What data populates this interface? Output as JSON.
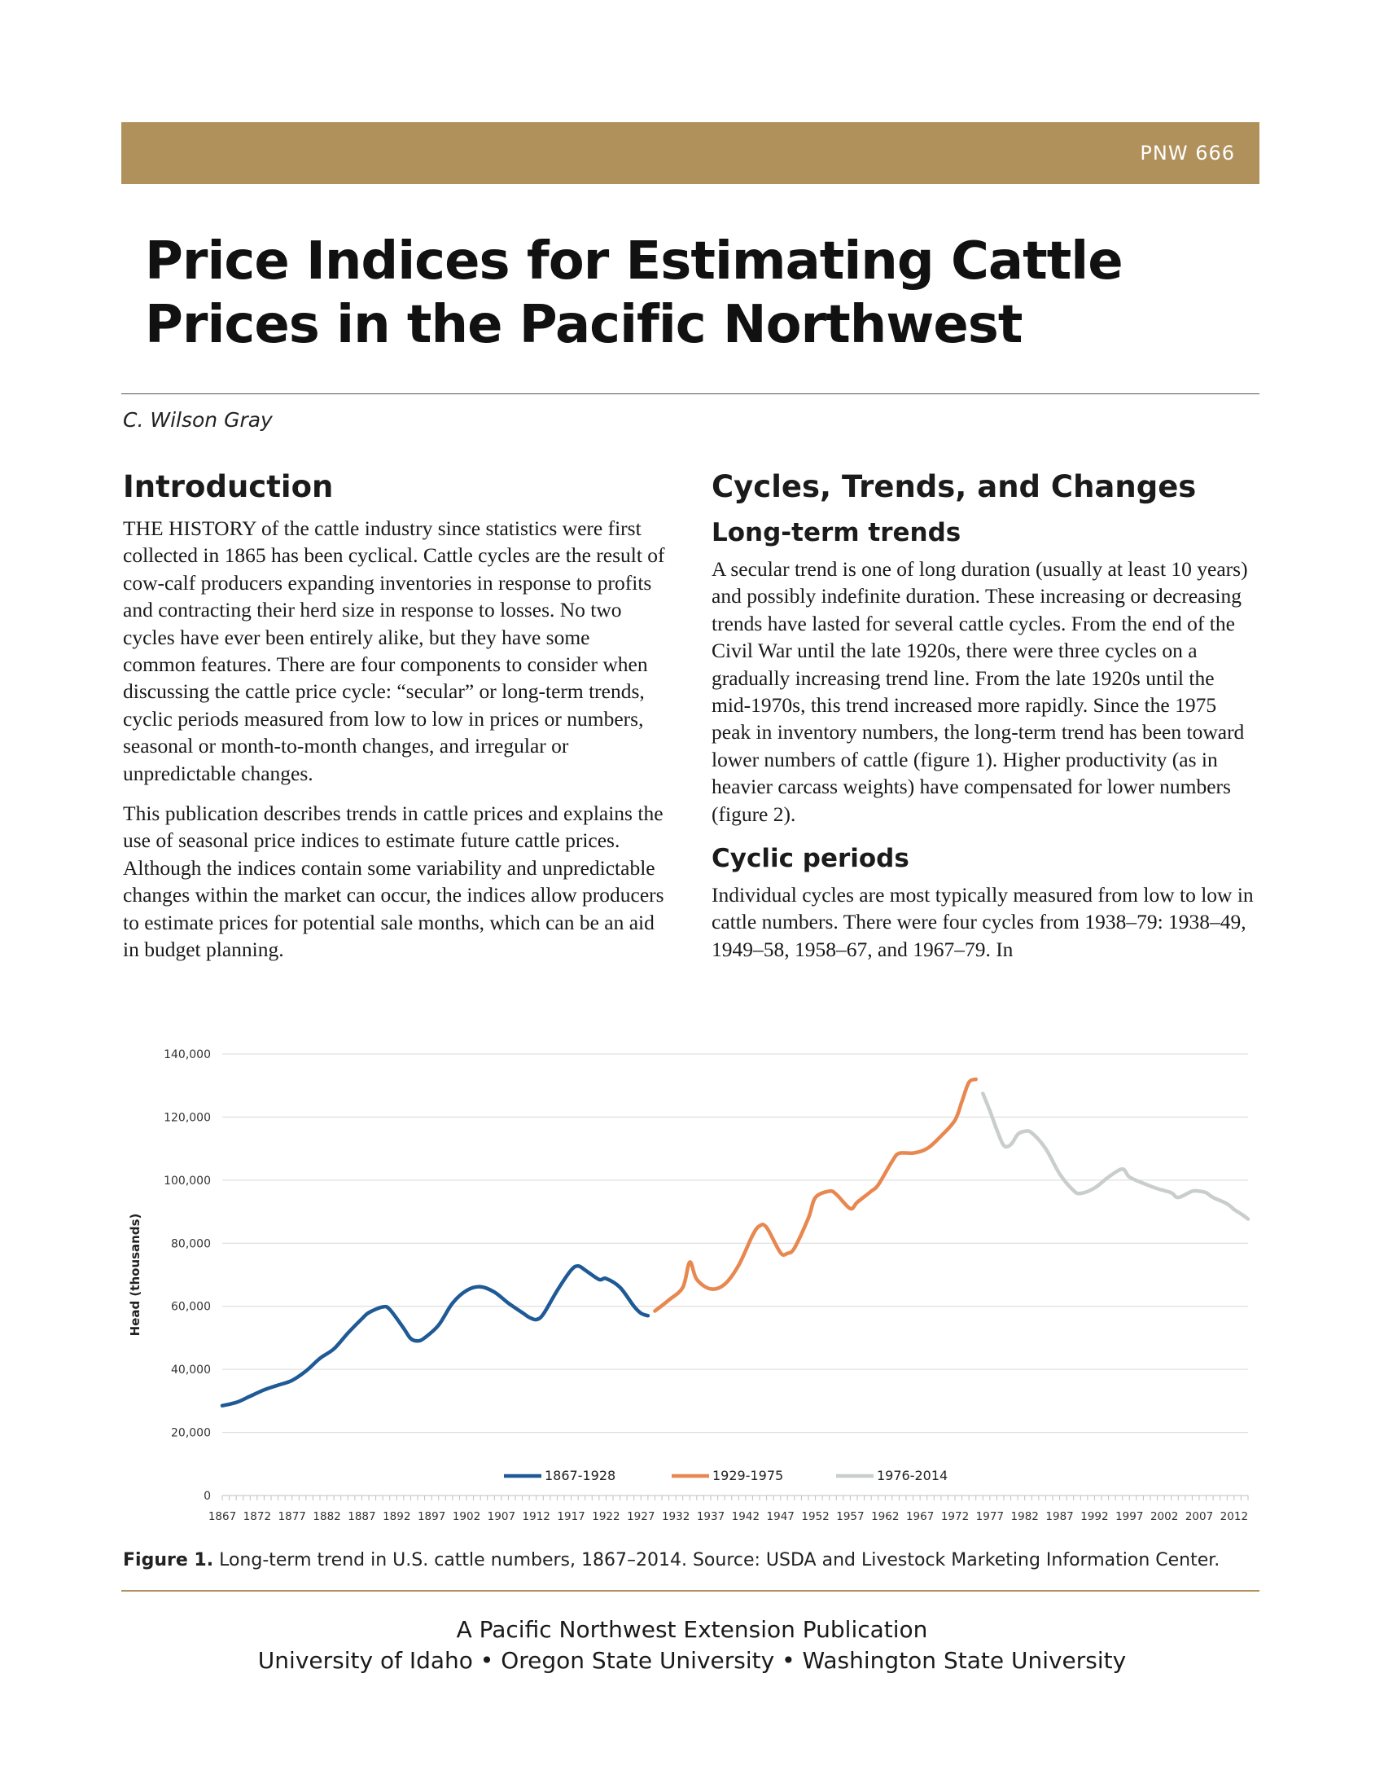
{
  "header": {
    "pub_id": "PNW 666"
  },
  "title": "Price Indices for Estimating Cattle Prices in the Pacific Northwest",
  "author": "C. Wilson Gray",
  "intro": {
    "heading": "Introduction",
    "p1": "THE HISTORY of the cattle industry since statistics were first collected in 1865 has been cyclical. Cattle cycles are the result of cow-calf producers expanding inventories in response to profits and contracting their herd size in response to losses. No two cycles have ever been entirely alike, but they have some common features. There are four components to consider when discussing the cattle price cycle: “secular” or long-term trends, cyclic periods measured from low to low in prices or numbers, seasonal or month-to-month changes, and irregular or unpredictable changes.",
    "p2": "This publication describes trends in cattle prices and explains the use of seasonal price indices to estimate future cattle prices. Although the indices contain some variability and unpredictable changes within the market can occur, the indices allow producers to estimate prices for potential sale months, which can be an aid in budget planning."
  },
  "cycles": {
    "heading": "Cycles, Trends, and Changes",
    "sub1": "Long-term trends",
    "p1": "A secular trend is one of long duration (usually at least 10 years) and possibly indefinite duration. These increasing or decreasing trends have lasted for several cattle cycles. From the end of the Civil War until the late 1920s, there were three cycles on a gradually increasing trend line. From the late 1920s until the mid-1970s, this trend increased more rapidly. Since the 1975 peak in inventory numbers, the long-term trend has been toward lower numbers of cattle (figure 1). Higher productivity (as in heavier carcass weights) have compensated for lower numbers (figure 2).",
    "sub2": "Cyclic periods",
    "p2": "Individual cycles are most typically measured from low to low in cattle numbers. There were four cycles from 1938–79: 1938–49, 1949–58, 1958–67, and 1967–79. In"
  },
  "chart_data": {
    "type": "line",
    "ylabel": "Head (thousands)",
    "ylim": [
      0,
      140000
    ],
    "yticks": [
      0,
      20000,
      40000,
      60000,
      80000,
      100000,
      120000,
      140000
    ],
    "ytick_labels": [
      "0",
      "20,000",
      "40,000",
      "60,000",
      "80,000",
      "100,000",
      "120,000",
      "140,000"
    ],
    "xlim": [
      1867,
      2014
    ],
    "xtick_labels": [
      "1867",
      "1872",
      "1877",
      "1882",
      "1887",
      "1892",
      "1897",
      "1902",
      "1907",
      "1912",
      "1917",
      "1922",
      "1927",
      "1932",
      "1937",
      "1942",
      "1947",
      "1952",
      "1957",
      "1962",
      "1967",
      "1972",
      "1977",
      "1982",
      "1987",
      "1992",
      "1997",
      "2002",
      "2007",
      "2012"
    ],
    "grid": true,
    "legend": "bottom-center",
    "series": [
      {
        "name": "1867-1928",
        "color": "#1f5a96",
        "points": [
          [
            1867,
            28500
          ],
          [
            1869,
            29500
          ],
          [
            1871,
            31500
          ],
          [
            1873,
            33500
          ],
          [
            1875,
            35000
          ],
          [
            1877,
            36500
          ],
          [
            1879,
            39500
          ],
          [
            1881,
            43500
          ],
          [
            1883,
            46500
          ],
          [
            1885,
            51500
          ],
          [
            1887,
            56000
          ],
          [
            1888,
            58000
          ],
          [
            1890,
            59800
          ],
          [
            1891,
            59000
          ],
          [
            1893,
            53000
          ],
          [
            1894,
            49800
          ],
          [
            1895,
            49000
          ],
          [
            1896,
            50000
          ],
          [
            1898,
            54000
          ],
          [
            1900,
            61000
          ],
          [
            1902,
            65000
          ],
          [
            1904,
            66200
          ],
          [
            1906,
            64500
          ],
          [
            1908,
            61000
          ],
          [
            1910,
            58000
          ],
          [
            1911,
            56500
          ],
          [
            1912,
            55800
          ],
          [
            1913,
            57500
          ],
          [
            1915,
            65000
          ],
          [
            1917,
            71500
          ],
          [
            1918,
            72800
          ],
          [
            1919,
            71500
          ],
          [
            1921,
            68500
          ],
          [
            1922,
            68800
          ],
          [
            1924,
            66000
          ],
          [
            1926,
            60000
          ],
          [
            1927,
            57800
          ],
          [
            1928,
            57000
          ]
        ]
      },
      {
        "name": "1929-1975",
        "color": "#e8874f",
        "points": [
          [
            1929,
            58500
          ],
          [
            1931,
            62000
          ],
          [
            1933,
            66000
          ],
          [
            1934,
            74000
          ],
          [
            1935,
            68500
          ],
          [
            1937,
            65500
          ],
          [
            1939,
            67000
          ],
          [
            1941,
            73000
          ],
          [
            1943,
            82500
          ],
          [
            1944,
            85500
          ],
          [
            1945,
            85000
          ],
          [
            1947,
            77000
          ],
          [
            1948,
            76800
          ],
          [
            1949,
            78500
          ],
          [
            1951,
            88000
          ],
          [
            1952,
            94500
          ],
          [
            1954,
            96500
          ],
          [
            1955,
            95500
          ],
          [
            1957,
            91000
          ],
          [
            1958,
            93000
          ],
          [
            1960,
            96500
          ],
          [
            1961,
            98500
          ],
          [
            1963,
            106000
          ],
          [
            1964,
            108500
          ],
          [
            1966,
            108600
          ],
          [
            1968,
            110000
          ],
          [
            1970,
            114000
          ],
          [
            1972,
            119000
          ],
          [
            1973,
            125000
          ],
          [
            1974,
            131000
          ],
          [
            1975,
            132000
          ]
        ]
      },
      {
        "name": "1976-2014",
        "color": "#c9cdcd",
        "points": [
          [
            1976,
            127500
          ],
          [
            1977,
            122000
          ],
          [
            1978,
            116000
          ],
          [
            1979,
            111000
          ],
          [
            1980,
            111300
          ],
          [
            1981,
            114500
          ],
          [
            1982,
            115500
          ],
          [
            1983,
            115000
          ],
          [
            1985,
            110000
          ],
          [
            1987,
            102000
          ],
          [
            1989,
            96700
          ],
          [
            1990,
            95800
          ],
          [
            1992,
            97500
          ],
          [
            1994,
            101000
          ],
          [
            1996,
            103500
          ],
          [
            1997,
            101000
          ],
          [
            1999,
            99000
          ],
          [
            2001,
            97300
          ],
          [
            2003,
            96000
          ],
          [
            2004,
            94500
          ],
          [
            2006,
            96500
          ],
          [
            2007,
            96500
          ],
          [
            2008,
            96000
          ],
          [
            2009,
            94500
          ],
          [
            2011,
            92500
          ],
          [
            2012,
            90700
          ],
          [
            2013,
            89300
          ],
          [
            2014,
            87700
          ]
        ]
      }
    ]
  },
  "caption": {
    "lead": "Figure 1.",
    "text": "Long-term trend in U.S. cattle numbers, 1867–2014. Source: USDA and Livestock Marketing Information Center."
  },
  "footer": {
    "line1": "A Pacific Northwest Extension Publication",
    "line2": "University of Idaho • Oregon State University • Washington State University"
  }
}
